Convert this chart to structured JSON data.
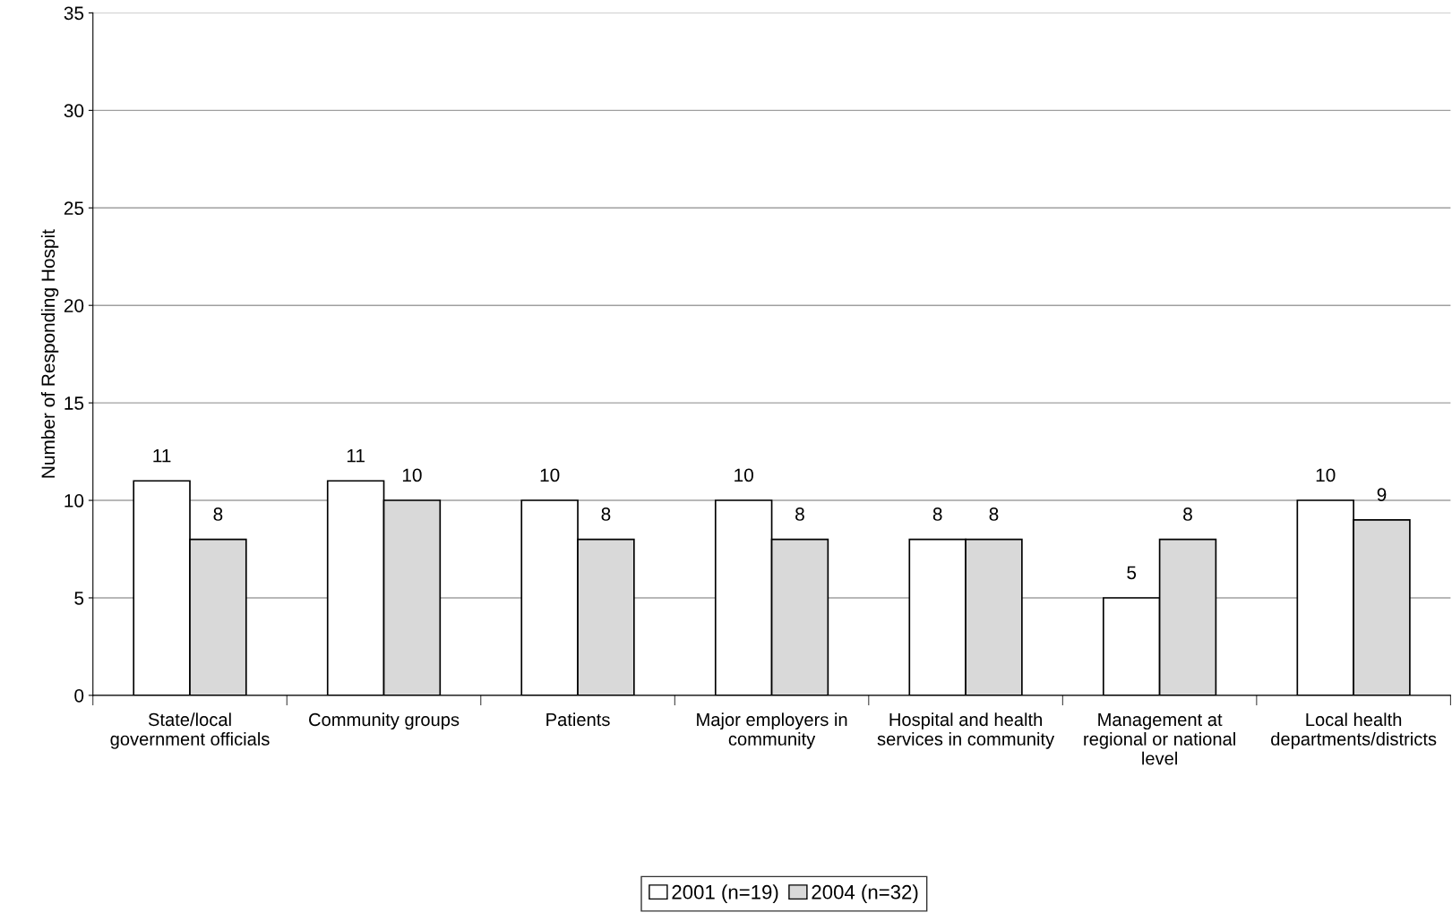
{
  "chart_data": {
    "type": "bar",
    "ylabel": "Number of Responding Hospit",
    "categories": [
      "State/local\ngovernment officials",
      "Community groups",
      "Patients",
      "Major employers in\ncommunity",
      "Hospital and health\nservices in community",
      "Management at\nregional or national\nlevel",
      "Local health\ndepartments/districts"
    ],
    "series": [
      {
        "name": "2001 (n=19)",
        "color": "#ffffff",
        "values": [
          11,
          11,
          10,
          10,
          8,
          5,
          10
        ]
      },
      {
        "name": "2004 (n=32)",
        "color": "#d9d9d9",
        "values": [
          8,
          10,
          8,
          8,
          8,
          8,
          9
        ]
      }
    ],
    "ylim": [
      0,
      35
    ],
    "yticks": [
      0,
      5,
      10,
      15,
      20,
      25,
      30,
      35
    ],
    "grid": "y",
    "legend": "bottom",
    "data_labels": true
  }
}
